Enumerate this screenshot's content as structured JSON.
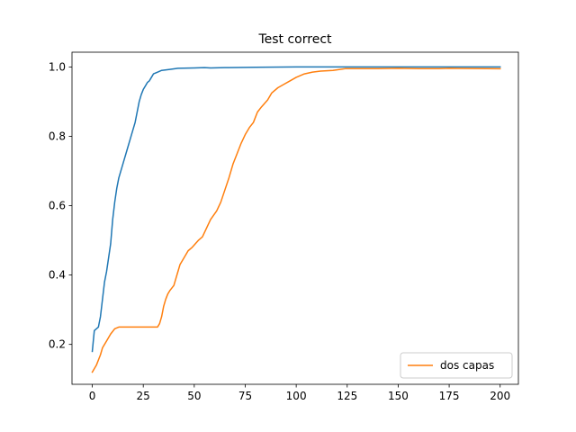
{
  "chart_data": {
    "type": "line",
    "title": "Test correct",
    "xlabel": "",
    "ylabel": "",
    "xlim": [
      -9.95,
      208.95
    ],
    "ylim": [
      0.085,
      1.0425
    ],
    "xticks": [
      0,
      25,
      50,
      75,
      100,
      125,
      150,
      175,
      200
    ],
    "yticks": [
      0.2,
      0.4,
      0.6,
      0.8,
      1.0
    ],
    "ytick_labels": [
      "0.2",
      "0.4",
      "0.6",
      "0.8",
      "1.0"
    ],
    "grid": false,
    "legend_position": "lower right",
    "series": [
      {
        "color": "#1f77b4",
        "points": [
          [
            0,
            0.18
          ],
          [
            1,
            0.24
          ],
          [
            3,
            0.25
          ],
          [
            4,
            0.28
          ],
          [
            5,
            0.33
          ],
          [
            6,
            0.38
          ],
          [
            7,
            0.41
          ],
          [
            8,
            0.45
          ],
          [
            9,
            0.49
          ],
          [
            10,
            0.56
          ],
          [
            11,
            0.61
          ],
          [
            12,
            0.65
          ],
          [
            13,
            0.68
          ],
          [
            15,
            0.72
          ],
          [
            17,
            0.76
          ],
          [
            19,
            0.8
          ],
          [
            21,
            0.84
          ],
          [
            22,
            0.87
          ],
          [
            23,
            0.9
          ],
          [
            24,
            0.92
          ],
          [
            25,
            0.935
          ],
          [
            26,
            0.945
          ],
          [
            27,
            0.955
          ],
          [
            28,
            0.96
          ],
          [
            29,
            0.97
          ],
          [
            30,
            0.98
          ],
          [
            32,
            0.985
          ],
          [
            34,
            0.99
          ],
          [
            38,
            0.993
          ],
          [
            42,
            0.996
          ],
          [
            50,
            0.997
          ],
          [
            55,
            0.998
          ],
          [
            58,
            0.997
          ],
          [
            65,
            0.998
          ],
          [
            80,
            0.999
          ],
          [
            100,
            1.0
          ],
          [
            200,
            1.0
          ]
        ]
      },
      {
        "name": "dos capas",
        "color": "#ff7f0e",
        "points": [
          [
            0,
            0.12
          ],
          [
            2,
            0.14
          ],
          [
            4,
            0.17
          ],
          [
            5,
            0.19
          ],
          [
            7,
            0.21
          ],
          [
            9,
            0.23
          ],
          [
            11,
            0.245
          ],
          [
            13,
            0.25
          ],
          [
            32,
            0.25
          ],
          [
            33,
            0.26
          ],
          [
            34,
            0.28
          ],
          [
            35,
            0.31
          ],
          [
            36,
            0.33
          ],
          [
            37,
            0.345
          ],
          [
            38,
            0.355
          ],
          [
            40,
            0.37
          ],
          [
            41,
            0.39
          ],
          [
            42,
            0.41
          ],
          [
            43,
            0.43
          ],
          [
            45,
            0.45
          ],
          [
            47,
            0.47
          ],
          [
            49,
            0.48
          ],
          [
            52,
            0.5
          ],
          [
            54,
            0.51
          ],
          [
            56,
            0.535
          ],
          [
            58,
            0.56
          ],
          [
            61,
            0.585
          ],
          [
            63,
            0.61
          ],
          [
            65,
            0.645
          ],
          [
            67,
            0.68
          ],
          [
            69,
            0.72
          ],
          [
            71,
            0.75
          ],
          [
            73,
            0.78
          ],
          [
            75,
            0.805
          ],
          [
            77,
            0.825
          ],
          [
            79,
            0.84
          ],
          [
            81,
            0.87
          ],
          [
            83,
            0.885
          ],
          [
            86,
            0.905
          ],
          [
            88,
            0.925
          ],
          [
            91,
            0.94
          ],
          [
            94,
            0.95
          ],
          [
            97,
            0.96
          ],
          [
            100,
            0.97
          ],
          [
            104,
            0.98
          ],
          [
            108,
            0.985
          ],
          [
            112,
            0.988
          ],
          [
            118,
            0.99
          ],
          [
            124,
            0.995
          ],
          [
            140,
            0.995
          ],
          [
            150,
            0.996
          ],
          [
            160,
            0.995
          ],
          [
            170,
            0.995
          ],
          [
            175,
            0.996
          ],
          [
            200,
            0.995
          ]
        ]
      }
    ]
  }
}
